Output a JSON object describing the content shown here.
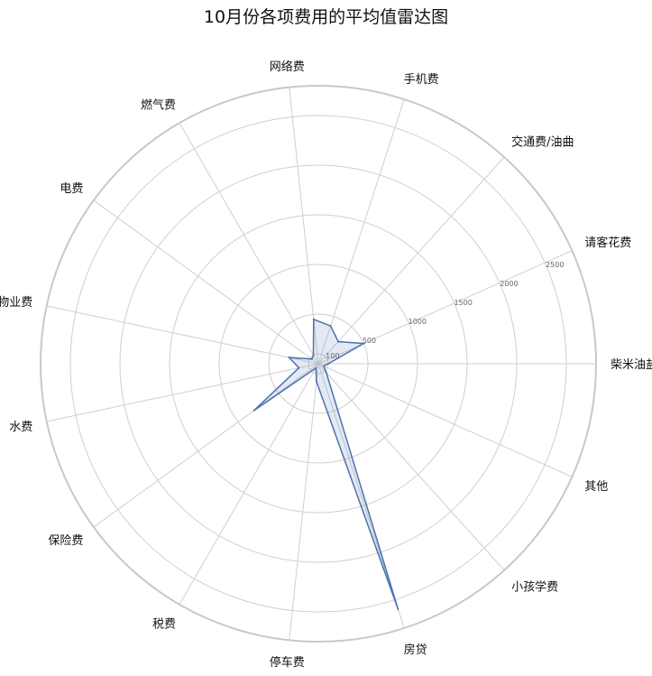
{
  "chart_data": {
    "type": "radar",
    "title": "10月份各项费用的平均值雷达图",
    "categories": [
      "柴米油盐",
      "请客花费",
      "交通费/油曲",
      "手机费",
      "网络费",
      "燃气费",
      "电费",
      "物业费",
      "水费",
      "保险费",
      "税费",
      "停车费",
      "房贷",
      "小孩学费",
      "其他"
    ],
    "values": [
      100,
      500,
      300,
      400,
      450,
      100,
      80,
      300,
      200,
      800,
      50,
      180,
      2600,
      120,
      60
    ],
    "radial_ticks": [
      100,
      500,
      1000,
      1500,
      2000,
      2500
    ],
    "rlim": [
      0,
      2800
    ],
    "grid": true,
    "colors": {
      "series": "#4c72b0",
      "grid": "#cfcfcf"
    }
  }
}
